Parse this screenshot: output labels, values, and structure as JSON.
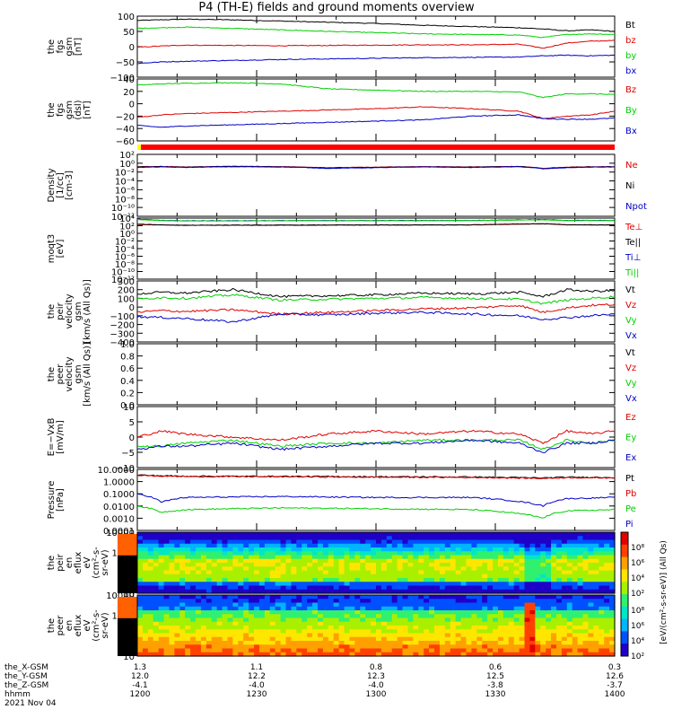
{
  "title": "P4 (TH-E) fields and ground moments overview",
  "footer": {
    "rows": [
      {
        "label": "the_X-GSM",
        "values": [
          "1.3",
          "1.1",
          "0.8",
          "0.6",
          "0.3"
        ]
      },
      {
        "label": "the_Y-GSM",
        "values": [
          "12.0",
          "12.2",
          "12.3",
          "12.5",
          "12.6"
        ]
      },
      {
        "label": "the_Z-GSM",
        "values": [
          "-4.1",
          "-4.0",
          "-4.0",
          "-3.8",
          "-3.7"
        ]
      },
      {
        "label": "hhmm",
        "values": [
          "1200",
          "1230",
          "1300",
          "1330",
          "1400"
        ]
      }
    ],
    "date": "2021 Nov 04"
  },
  "colorbar": {
    "label": "[eV/(cm²-s-sr-eV)] (All Qs)",
    "ticks_top": [
      "10⁸",
      "10⁶",
      "10⁴",
      "10²"
    ],
    "ticks_bottom": [
      "10⁸",
      "10⁶",
      "10⁴",
      "10²"
    ]
  },
  "colors": {
    "black": "#000000",
    "red": "#e00000",
    "green": "#00d000",
    "blue": "#0000c8"
  },
  "chart_data": [
    {
      "type": "line",
      "ylabel": [
        "the",
        "fgs",
        "gsm",
        "[nT]"
      ],
      "ylim": [
        -100,
        100
      ],
      "yticks": [
        "100",
        "50",
        "0",
        "−50",
        "−100"
      ],
      "series": [
        {
          "name": "Bt",
          "color": "#000000",
          "x": [
            0,
            0.05,
            0.1,
            0.2,
            0.3,
            0.4,
            0.5,
            0.6,
            0.7,
            0.8,
            0.85,
            0.9,
            0.95,
            1
          ],
          "y": [
            86,
            88,
            90,
            88,
            84,
            80,
            76,
            70,
            66,
            62,
            58,
            52,
            55,
            50
          ]
        },
        {
          "name": "bz",
          "color": "#e00000",
          "x": [
            0,
            0.05,
            0.1,
            0.2,
            0.3,
            0.4,
            0.5,
            0.6,
            0.7,
            0.8,
            0.85,
            0.9,
            0.95,
            1
          ],
          "y": [
            -2,
            2,
            5,
            4,
            3,
            4,
            5,
            6,
            6,
            8,
            -5,
            12,
            18,
            20
          ]
        },
        {
          "name": "by",
          "color": "#00d000",
          "x": [
            0,
            0.05,
            0.1,
            0.2,
            0.3,
            0.4,
            0.5,
            0.6,
            0.7,
            0.8,
            0.85,
            0.9,
            0.95,
            1
          ],
          "y": [
            60,
            62,
            64,
            60,
            55,
            50,
            46,
            42,
            40,
            38,
            30,
            40,
            42,
            40
          ]
        },
        {
          "name": "bx",
          "color": "#0000c8",
          "x": [
            0,
            0.05,
            0.1,
            0.2,
            0.3,
            0.4,
            0.5,
            0.6,
            0.7,
            0.8,
            0.85,
            0.9,
            0.95,
            1
          ],
          "y": [
            -55,
            -50,
            -48,
            -45,
            -42,
            -40,
            -38,
            -36,
            -35,
            -34,
            -30,
            -28,
            -30,
            -28
          ]
        }
      ]
    },
    {
      "type": "line",
      "ylabel": [
        "the",
        "fgs",
        "gsm",
        "(dsl)",
        "[nT]"
      ],
      "ylim": [
        -60,
        40
      ],
      "yticks": [
        "40",
        "20",
        "0",
        "−20",
        "−40",
        "−60"
      ],
      "series": [
        {
          "name": "Bz",
          "color": "#e00000",
          "x": [
            0,
            0.05,
            0.1,
            0.2,
            0.3,
            0.4,
            0.5,
            0.6,
            0.7,
            0.8,
            0.85,
            0.9,
            0.95,
            1
          ],
          "y": [
            -22,
            -18,
            -16,
            -14,
            -12,
            -10,
            -8,
            -5,
            -8,
            -12,
            -24,
            -20,
            -18,
            -12
          ]
        },
        {
          "name": "By",
          "color": "#00d000",
          "x": [
            0,
            0.05,
            0.1,
            0.2,
            0.3,
            0.4,
            0.5,
            0.6,
            0.7,
            0.8,
            0.85,
            0.9,
            0.95,
            1
          ],
          "y": [
            30,
            32,
            33,
            34,
            32,
            24,
            22,
            20,
            20,
            19,
            10,
            16,
            16,
            15
          ]
        },
        {
          "name": "Bx",
          "color": "#0000c8",
          "x": [
            0,
            0.05,
            0.1,
            0.2,
            0.3,
            0.4,
            0.5,
            0.6,
            0.7,
            0.8,
            0.85,
            0.9,
            0.95,
            1
          ],
          "y": [
            -35,
            -38,
            -36,
            -34,
            -32,
            -30,
            -28,
            -26,
            -20,
            -18,
            -24,
            -25,
            -25,
            -23
          ]
        }
      ]
    },
    {
      "type": "line",
      "ylabel": [
        "Density",
        "[1/cc]",
        "[cm-3]"
      ],
      "yscale": "log",
      "ylim": [
        1e-12,
        1000
      ],
      "yticks": [
        "10²",
        "10⁰",
        "10⁻²",
        "10⁻⁴",
        "10⁻⁶",
        "10⁻⁸",
        "10⁻¹⁰",
        "10⁻¹²"
      ],
      "series": [
        {
          "name": "Ne",
          "color": "#e00000",
          "x": [
            0,
            0.05,
            0.1,
            0.2,
            0.3,
            0.4,
            0.5,
            0.6,
            0.7,
            0.8,
            0.85,
            0.9,
            0.95,
            1
          ],
          "y": [
            1,
            1.2,
            0.9,
            1.3,
            1.1,
            0.6,
            0.8,
            1.1,
            0.9,
            1.2,
            0.4,
            0.8,
            1,
            1.1
          ]
        },
        {
          "name": "Ni",
          "color": "#000000",
          "x": [
            0,
            0.05,
            0.1,
            0.2,
            0.3,
            0.4,
            0.5,
            0.6,
            0.7,
            0.8,
            0.85,
            0.9,
            0.95,
            1
          ],
          "y": [
            0.9,
            1.1,
            0.8,
            1.2,
            1,
            0.5,
            0.7,
            1,
            0.8,
            1.1,
            0.35,
            0.7,
            0.9,
            1
          ]
        },
        {
          "name": "Npot",
          "color": "#0000c8",
          "x": [
            0,
            0.05,
            0.1,
            0.2,
            0.3,
            0.4,
            0.5,
            0.6,
            0.7,
            0.8,
            0.85,
            0.9,
            0.95,
            1
          ],
          "y": [
            0.7,
            0.9,
            0.7,
            1,
            0.9,
            0.4,
            0.6,
            0.9,
            0.7,
            1,
            0.3,
            0.6,
            0.8,
            0.9
          ]
        }
      ]
    },
    {
      "type": "line",
      "ylabel": [
        "moqt3",
        "[eV]"
      ],
      "yscale": "log",
      "ylim": [
        1e-12,
        10000
      ],
      "yticks": [
        "10⁴",
        "10²",
        "10⁰",
        "10⁻²",
        "10⁻⁴",
        "10⁻⁶",
        "10⁻⁸",
        "10⁻¹⁰",
        "10⁻¹²"
      ],
      "series": [
        {
          "name": "Te⊥",
          "color": "#e00000",
          "x": [
            0,
            0.05,
            0.1,
            0.3,
            0.5,
            0.7,
            0.85,
            0.9,
            1
          ],
          "y": [
            200,
            150,
            120,
            130,
            140,
            150,
            300,
            160,
            150
          ]
        },
        {
          "name": "Te||",
          "color": "#000000",
          "x": [
            0,
            0.05,
            0.1,
            0.3,
            0.5,
            0.7,
            0.85,
            0.9,
            1
          ],
          "y": [
            250,
            170,
            140,
            150,
            160,
            170,
            350,
            180,
            170
          ]
        },
        {
          "name": "Ti⊥",
          "color": "#0000c8",
          "x": [
            0,
            0.05,
            0.1,
            0.3,
            0.5,
            0.7,
            0.85,
            0.9,
            1
          ],
          "y": [
            5000,
            2500,
            2000,
            2200,
            2300,
            2400,
            4000,
            2500,
            2400
          ]
        },
        {
          "name": "Ti||",
          "color": "#00d000",
          "x": [
            0,
            0.05,
            0.1,
            0.3,
            0.5,
            0.7,
            0.85,
            0.9,
            1
          ],
          "y": [
            4000,
            2200,
            1800,
            2000,
            2100,
            2200,
            3500,
            2300,
            2200
          ]
        }
      ]
    },
    {
      "type": "line",
      "ylabel": [
        "the",
        "peir",
        "velocity",
        "gsm",
        "[km/s (All Qs)]"
      ],
      "ylim": [
        -400,
        300
      ],
      "yticks": [
        "300",
        "200",
        "100",
        "0",
        "−100",
        "−200",
        "−300",
        "−400"
      ],
      "series": [
        {
          "name": "Vt",
          "color": "#000000",
          "x": [
            0,
            0.05,
            0.1,
            0.2,
            0.3,
            0.4,
            0.5,
            0.6,
            0.7,
            0.8,
            0.85,
            0.9,
            0.95,
            1
          ],
          "y": [
            150,
            170,
            160,
            200,
            120,
            130,
            140,
            160,
            150,
            170,
            120,
            200,
            180,
            190
          ]
        },
        {
          "name": "Vz",
          "color": "#e00000",
          "x": [
            0,
            0.05,
            0.1,
            0.2,
            0.3,
            0.4,
            0.5,
            0.6,
            0.7,
            0.8,
            0.85,
            0.9,
            0.95,
            1
          ],
          "y": [
            -60,
            -40,
            -50,
            -30,
            -80,
            -60,
            -40,
            -20,
            -10,
            20,
            -60,
            -10,
            20,
            30
          ]
        },
        {
          "name": "Vy",
          "color": "#00d000",
          "x": [
            0,
            0.05,
            0.1,
            0.2,
            0.3,
            0.4,
            0.5,
            0.6,
            0.7,
            0.8,
            0.85,
            0.9,
            0.95,
            1
          ],
          "y": [
            90,
            110,
            100,
            140,
            80,
            90,
            100,
            110,
            100,
            90,
            40,
            80,
            100,
            120
          ]
        },
        {
          "name": "Vx",
          "color": "#0000c8",
          "x": [
            0,
            0.05,
            0.1,
            0.2,
            0.3,
            0.4,
            0.5,
            0.6,
            0.7,
            0.8,
            0.85,
            0.9,
            0.95,
            1
          ],
          "y": [
            -110,
            -120,
            -130,
            -170,
            -80,
            -90,
            -70,
            -60,
            -80,
            -100,
            -140,
            -120,
            -100,
            -80
          ]
        }
      ]
    },
    {
      "type": "line",
      "ylabel": [
        "the",
        "peer",
        "velocity",
        "gsm",
        "[km/s (All Qs)]"
      ],
      "ylim": [
        0,
        1
      ],
      "yticks": [
        "1.0",
        "0.8",
        "0.6",
        "0.4",
        "0.2",
        "0.0"
      ],
      "series": [
        {
          "name": "Vt",
          "color": "#000000"
        },
        {
          "name": "Vz",
          "color": "#e00000"
        },
        {
          "name": "Vy",
          "color": "#00d000"
        },
        {
          "name": "Vx",
          "color": "#0000c8"
        }
      ]
    },
    {
      "type": "line",
      "ylabel": [
        "E=−VxB",
        "[mV/m]"
      ],
      "ylim": [
        -10,
        10
      ],
      "yticks": [
        "10",
        "5",
        "0",
        "−5",
        "−10"
      ],
      "series": [
        {
          "name": "Ez",
          "color": "#e00000",
          "x": [
            0,
            0.05,
            0.1,
            0.2,
            0.3,
            0.4,
            0.5,
            0.6,
            0.7,
            0.8,
            0.85,
            0.9,
            0.95,
            1
          ],
          "y": [
            0,
            2,
            1,
            0,
            -1,
            1,
            2,
            1,
            2,
            1,
            -2,
            2,
            1,
            2
          ]
        },
        {
          "name": "Ey",
          "color": "#00d000",
          "x": [
            0,
            0.05,
            0.1,
            0.2,
            0.3,
            0.4,
            0.5,
            0.6,
            0.7,
            0.8,
            0.85,
            0.9,
            0.95,
            1
          ],
          "y": [
            -3,
            -3,
            -2,
            -1,
            -3,
            -2,
            -2,
            -1,
            -1,
            -1,
            -4,
            -1,
            -2,
            -1
          ]
        },
        {
          "name": "Ex",
          "color": "#0000c8",
          "x": [
            0,
            0.05,
            0.1,
            0.2,
            0.3,
            0.4,
            0.5,
            0.6,
            0.7,
            0.8,
            0.85,
            0.9,
            0.95,
            1
          ],
          "y": [
            -4,
            -3,
            -3,
            -2,
            -4,
            -3,
            -2,
            -2,
            -1,
            -2,
            -5,
            -2,
            -2,
            -1
          ]
        }
      ]
    },
    {
      "type": "line",
      "ylabel": [
        "Pressure",
        "[nPa]"
      ],
      "yscale": "log",
      "ylim": [
        0.0001,
        10
      ],
      "yticks": [
        "10.0000",
        "1.0000",
        "0.1000",
        "0.0100",
        "0.0010",
        "0.0001"
      ],
      "series": [
        {
          "name": "Pt",
          "color": "#000000",
          "x": [
            0,
            0.05,
            0.1,
            0.3,
            0.5,
            0.7,
            0.85,
            0.9,
            1
          ],
          "y": [
            3.5,
            3,
            2.8,
            2.7,
            2.5,
            2.4,
            2,
            2.3,
            2.2
          ]
        },
        {
          "name": "Pb",
          "color": "#e00000",
          "x": [
            0,
            0.05,
            0.1,
            0.3,
            0.5,
            0.7,
            0.85,
            0.9,
            1
          ],
          "y": [
            3.2,
            2.8,
            2.6,
            2.5,
            2.3,
            2.2,
            1.8,
            2.1,
            2
          ]
        },
        {
          "name": "Pe",
          "color": "#00d000",
          "x": [
            0,
            0.05,
            0.1,
            0.3,
            0.5,
            0.7,
            0.85,
            0.9,
            1
          ],
          "y": [
            0.01,
            0.003,
            0.005,
            0.007,
            0.006,
            0.005,
            0.001,
            0.004,
            0.005
          ]
        },
        {
          "name": "Pi",
          "color": "#0000c8",
          "x": [
            0,
            0.05,
            0.1,
            0.3,
            0.5,
            0.7,
            0.85,
            0.9,
            1
          ],
          "y": [
            0.1,
            0.02,
            0.05,
            0.06,
            0.05,
            0.05,
            0.01,
            0.04,
            0.05
          ]
        }
      ]
    },
    {
      "type": "heatmap",
      "ylabel": [
        "the",
        "peir",
        "en",
        "eflux",
        "eV",
        "(cm²-s-",
        "sr-eV)"
      ],
      "yscale": "log",
      "ylim": [
        10,
        10000
      ],
      "yticks": [
        "10000",
        "1000",
        "100",
        "10"
      ]
    },
    {
      "type": "heatmap",
      "ylabel": [
        "the",
        "peer",
        "en",
        "eflux",
        "eV",
        "(cm²-s-",
        "sr-eV)"
      ],
      "yscale": "log",
      "ylim": [
        10,
        10000
      ],
      "yticks": [
        "10000",
        "1000",
        "100",
        "10"
      ]
    }
  ]
}
